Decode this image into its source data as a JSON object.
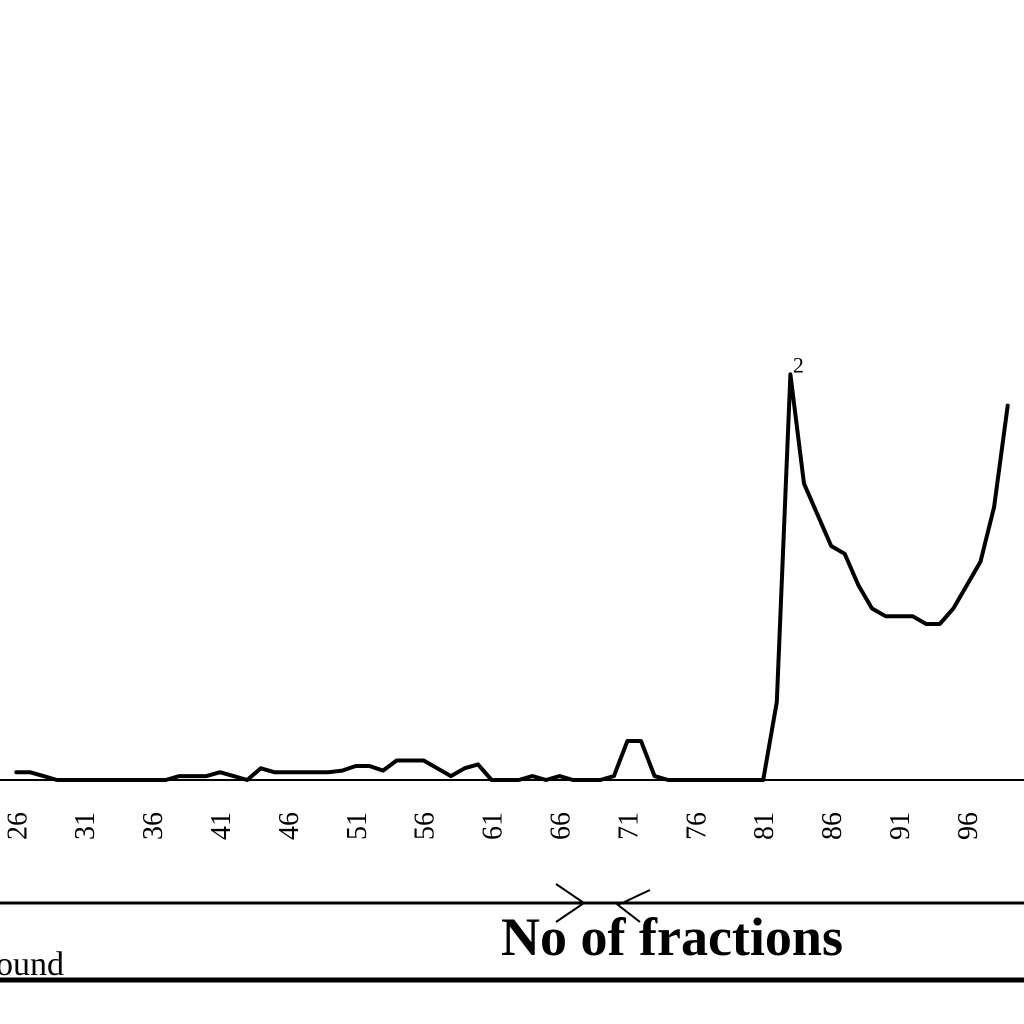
{
  "chart_data": {
    "type": "line",
    "title": "",
    "xlabel": "No of fractions",
    "ylabel": "",
    "x_tick_labels": [
      "26",
      "31",
      "36",
      "41",
      "46",
      "51",
      "56",
      "61",
      "66",
      "71",
      "76",
      "81",
      "86",
      "91",
      "96"
    ],
    "legend_text": "ound",
    "annotations": [
      {
        "label": "2",
        "x": 83,
        "y": 0.52
      }
    ],
    "series": [
      {
        "x": [
          26,
          27,
          28,
          29,
          30,
          31,
          32,
          33,
          34,
          35,
          36,
          37,
          38,
          39,
          40,
          41,
          42,
          43,
          44,
          45,
          46,
          47,
          48,
          49,
          50,
          51,
          52,
          53,
          54,
          55,
          56,
          57,
          58,
          59,
          60,
          61,
          62,
          63,
          64,
          65,
          66,
          67,
          68,
          69,
          70,
          71,
          72,
          73,
          74,
          75,
          76,
          77,
          78,
          79,
          80,
          81,
          82,
          83,
          84,
          85,
          86,
          87,
          88,
          89,
          90,
          91,
          92,
          93,
          94,
          95,
          96,
          97,
          98,
          99
        ],
        "y": [
          0.01,
          0.01,
          0.005,
          0,
          0,
          0,
          0,
          0,
          0,
          0,
          0,
          0,
          0.005,
          0.005,
          0.005,
          0.01,
          0.005,
          0,
          0.015,
          0.01,
          0.01,
          0.01,
          0.01,
          0.01,
          0.012,
          0.018,
          0.018,
          0.012,
          0.025,
          0.025,
          0.025,
          0.015,
          0.005,
          0.015,
          0.02,
          0,
          0,
          0,
          0.005,
          0,
          0.005,
          0,
          0,
          0,
          0.005,
          0.05,
          0.05,
          0.005,
          0,
          0,
          0,
          0,
          0,
          0,
          0,
          0,
          0.1,
          0.52,
          0.38,
          0.34,
          0.3,
          0.29,
          0.25,
          0.22,
          0.21,
          0.21,
          0.21,
          0.2,
          0.2,
          0.22,
          0.25,
          0.28,
          0.35,
          0.48
        ]
      }
    ],
    "xlim": [
      24.8,
      100.2
    ],
    "ylim": [
      0,
      1
    ],
    "grid": false,
    "colors": {
      "line": "#000000",
      "axis": "#000000",
      "background": "#ffffff"
    }
  }
}
